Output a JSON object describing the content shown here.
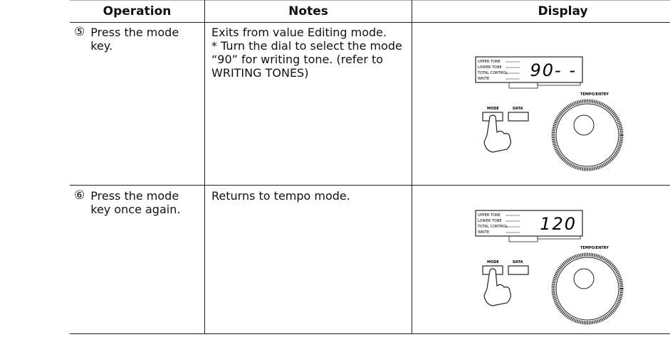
{
  "table": {
    "headers": [
      "Operation",
      "Notes",
      "Display"
    ],
    "rows": [
      {
        "step": "⑤",
        "operation": "Press the mode key.",
        "notes": [
          "Exits from value Editing mode.",
          "* Turn the dial to select the mode “90” for writing tone. (refer to WRITING TONES)"
        ],
        "display": {
          "lcd": "90- -",
          "indicators": [
            "UPPER TONE",
            "LOWER TONE",
            "TOTAL CONTROL",
            "WRITE"
          ],
          "dial": "TEMPO/ENTRY",
          "buttons": [
            "MODE",
            "DATA"
          ]
        }
      },
      {
        "step": "⑥",
        "operation": "Press the mode key once again.",
        "notes": [
          "Returns to tempo mode."
        ],
        "display": {
          "lcd": "120",
          "indicators": [
            "UPPER TONE",
            "LOWER TONE",
            "TOTAL CONTROL",
            "WRITE"
          ],
          "dial": "TEMPO/ENTRY",
          "buttons": [
            "MODE",
            "DATA"
          ]
        }
      }
    ]
  }
}
